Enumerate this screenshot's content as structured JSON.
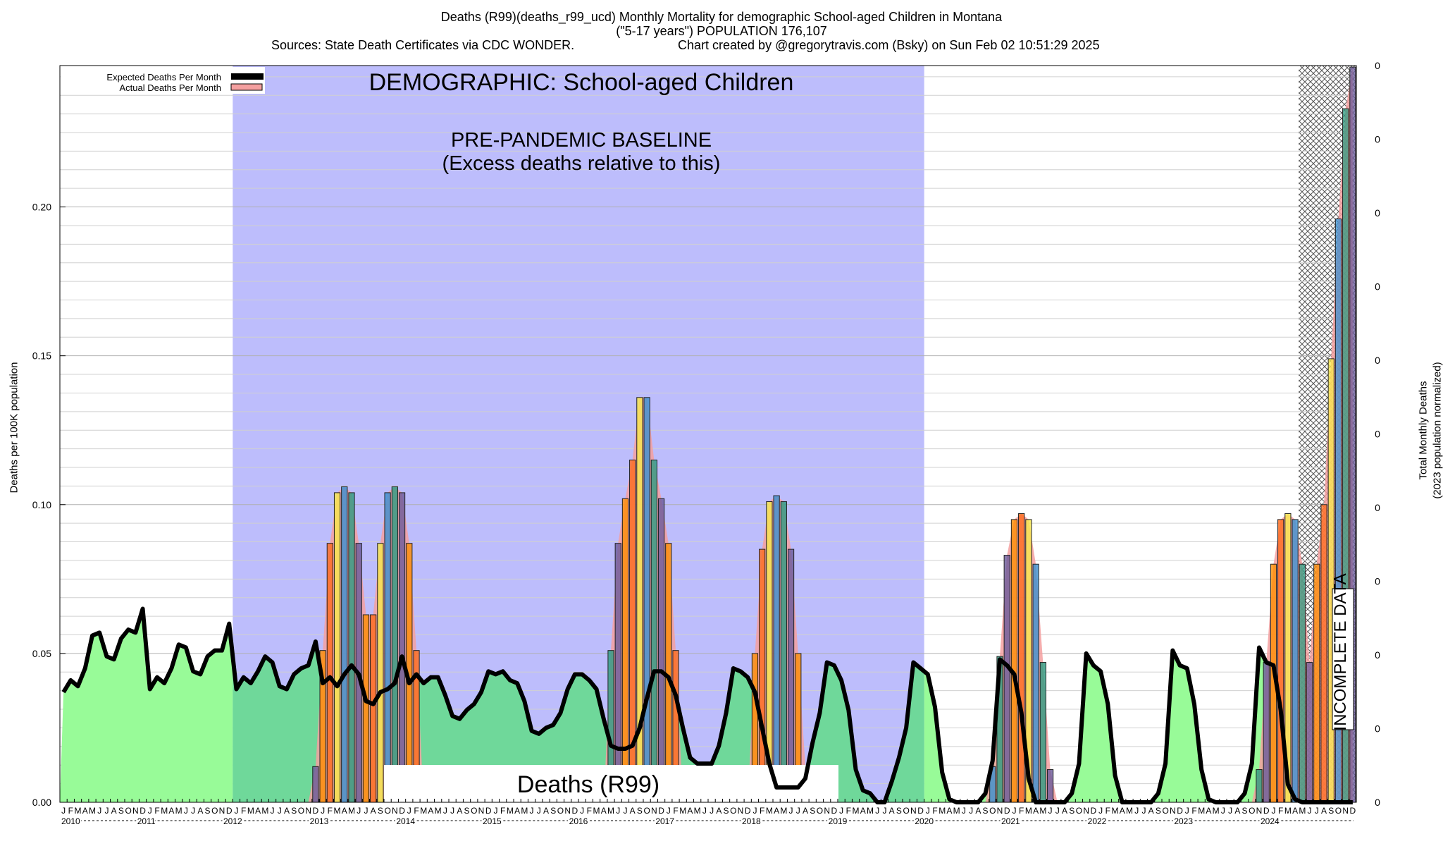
{
  "header": {
    "line1": "Deaths (R99)(deaths_r99_ucd) Monthly Mortality for demographic School-aged Children in Montana",
    "line2": "(\"5-17 years\") POPULATION 176,107",
    "line3a": "Sources: State Death Certificates via CDC WONDER.",
    "line3b": "Chart created by @gregorytravis.com (Bsky) on Sun Feb 02 10:51:29 2025"
  },
  "annotations": {
    "demographic": "DEMOGRAPHIC: School-aged Children",
    "baseline1": "PRE-PANDEMIC BASELINE",
    "baseline2": "(Excess deaths relative to this)",
    "cause": "Deaths (R99)",
    "incomplete": "INCOMPLETE DATA"
  },
  "colors": {
    "baseline_band": "#bdbdfc",
    "green": "#98fb98",
    "green_dark": "#6fd89a",
    "actual_fill": "#f4a0a0",
    "bar_colors": [
      "#ff8c00",
      "#ff6a1a",
      "#f9e84a",
      "#3a8fd0",
      "#2c9a7f",
      "#6a5a9a"
    ],
    "expected_line": "#000000"
  },
  "chart_data": {
    "type": "line",
    "ylabel": "Deaths per 100K population",
    "y2label_1": "Total Monthly Deaths",
    "y2label_2": "(2023 population normalized)",
    "ylim": [
      0,
      0.2475
    ],
    "yticks": [
      "0.00",
      "0.05",
      "0.10",
      "0.15",
      "0.20"
    ],
    "y2ticks": [
      "0",
      "0",
      "0",
      "0",
      "0",
      "0",
      "0",
      "0",
      "0",
      "0",
      "0"
    ],
    "xlim": [
      "2010-01",
      "2024-12"
    ],
    "month_letters": [
      "J",
      "F",
      "M",
      "A",
      "M",
      "J",
      "J",
      "A",
      "S",
      "O",
      "N",
      "D"
    ],
    "years": [
      "2010",
      "2011",
      "2012",
      "2013",
      "2014",
      "2015",
      "2016",
      "2017",
      "2018",
      "2019",
      "2020",
      "2021",
      "2022",
      "2023",
      "2024"
    ],
    "legend": {
      "expected": "Expected Deaths Per Month",
      "actual": "Actual Deaths Per Month",
      "placement": "top-left"
    },
    "baseline_period": [
      "2012-01",
      "2019-12"
    ],
    "incomplete_period": [
      "2024-05",
      "2024-12"
    ],
    "expected": [
      0.037,
      0.041,
      0.039,
      0.045,
      0.056,
      0.057,
      0.049,
      0.048,
      0.055,
      0.058,
      0.057,
      0.065,
      0.038,
      0.042,
      0.04,
      0.045,
      0.053,
      0.052,
      0.044,
      0.043,
      0.049,
      0.051,
      0.051,
      0.06,
      0.038,
      0.042,
      0.04,
      0.044,
      0.049,
      0.047,
      0.039,
      0.038,
      0.043,
      0.045,
      0.046,
      0.054,
      0.04,
      0.042,
      0.039,
      0.043,
      0.046,
      0.043,
      0.034,
      0.033,
      0.037,
      0.038,
      0.04,
      0.049,
      0.04,
      0.043,
      0.04,
      0.042,
      0.042,
      0.036,
      0.029,
      0.028,
      0.031,
      0.033,
      0.037,
      0.044,
      0.043,
      0.044,
      0.041,
      0.04,
      0.034,
      0.024,
      0.023,
      0.025,
      0.026,
      0.03,
      0.038,
      0.043,
      0.043,
      0.041,
      0.038,
      0.028,
      0.019,
      0.018,
      0.018,
      0.019,
      0.025,
      0.035,
      0.044,
      0.044,
      0.042,
      0.036,
      0.025,
      0.015,
      0.013,
      0.013,
      0.013,
      0.019,
      0.03,
      0.045,
      0.044,
      0.042,
      0.037,
      0.025,
      0.013,
      0.005,
      0.005,
      0.005,
      0.005,
      0.008,
      0.02,
      0.03,
      0.047,
      0.046,
      0.041,
      0.031,
      0.011,
      0.004,
      0.003,
      0.0,
      0.0,
      0.007,
      0.015,
      0.025,
      0.047,
      0.045,
      0.043,
      0.032,
      0.01,
      0.001,
      0.0,
      0.0,
      0.0,
      0.0,
      0.003,
      0.014,
      0.048,
      0.046,
      0.043,
      0.03,
      0.008,
      0.0,
      0.0,
      0.0,
      0.0,
      0.0,
      0.003,
      0.013,
      0.05,
      0.046,
      0.044,
      0.033,
      0.009,
      0.0,
      0.0,
      0.0,
      0.0,
      0.0,
      0.003,
      0.013,
      0.051,
      0.046,
      0.045,
      0.033,
      0.011,
      0.001,
      0.0,
      0.0,
      0.0,
      0.0,
      0.003,
      0.013,
      0.052,
      0.047,
      0.046,
      0.031,
      0.006,
      0.001,
      0.0,
      0.0,
      0.0,
      0.0,
      0.0,
      0.0,
      0.0,
      0.0
    ],
    "actual": [
      0,
      0,
      0,
      0,
      0,
      0,
      0,
      0,
      0,
      0,
      0,
      0,
      0,
      0,
      0,
      0,
      0,
      0,
      0,
      0,
      0,
      0,
      0,
      0,
      0,
      0,
      0,
      0,
      0,
      0,
      0,
      0,
      0,
      0,
      0,
      0.012,
      0.051,
      0.087,
      0.104,
      0.106,
      0.104,
      0.087,
      0.063,
      0.063,
      0.087,
      0.104,
      0.106,
      0.104,
      0.087,
      0.051,
      0,
      0,
      0,
      0,
      0,
      0,
      0,
      0,
      0,
      0,
      0,
      0,
      0,
      0,
      0,
      0,
      0,
      0,
      0,
      0,
      0,
      0,
      0,
      0,
      0,
      0,
      0.051,
      0.087,
      0.102,
      0.115,
      0.136,
      0.136,
      0.115,
      0.102,
      0.087,
      0.051,
      0,
      0,
      0,
      0,
      0,
      0,
      0,
      0,
      0,
      0,
      0.05,
      0.085,
      0.101,
      0.103,
      0.101,
      0.085,
      0.05,
      0.012,
      0,
      0,
      0,
      0,
      0,
      0,
      0,
      0,
      0,
      0,
      0,
      0,
      0,
      0,
      0,
      0,
      0,
      0,
      0,
      0,
      0,
      0,
      0,
      0,
      0,
      0.012,
      0.049,
      0.083,
      0.095,
      0.097,
      0.095,
      0.08,
      0.047,
      0.011,
      0,
      0,
      0,
      0,
      0,
      0,
      0,
      0,
      0,
      0,
      0,
      0,
      0,
      0,
      0,
      0,
      0,
      0,
      0,
      0,
      0,
      0,
      0,
      0,
      0,
      0,
      0,
      0,
      0.011,
      0.047,
      0.08,
      0.095,
      0.097,
      0.095,
      0.08,
      0.047,
      0.08,
      0.1,
      0.149,
      0.196,
      0.233,
      0.247
    ],
    "y_tick_count": 5
  }
}
